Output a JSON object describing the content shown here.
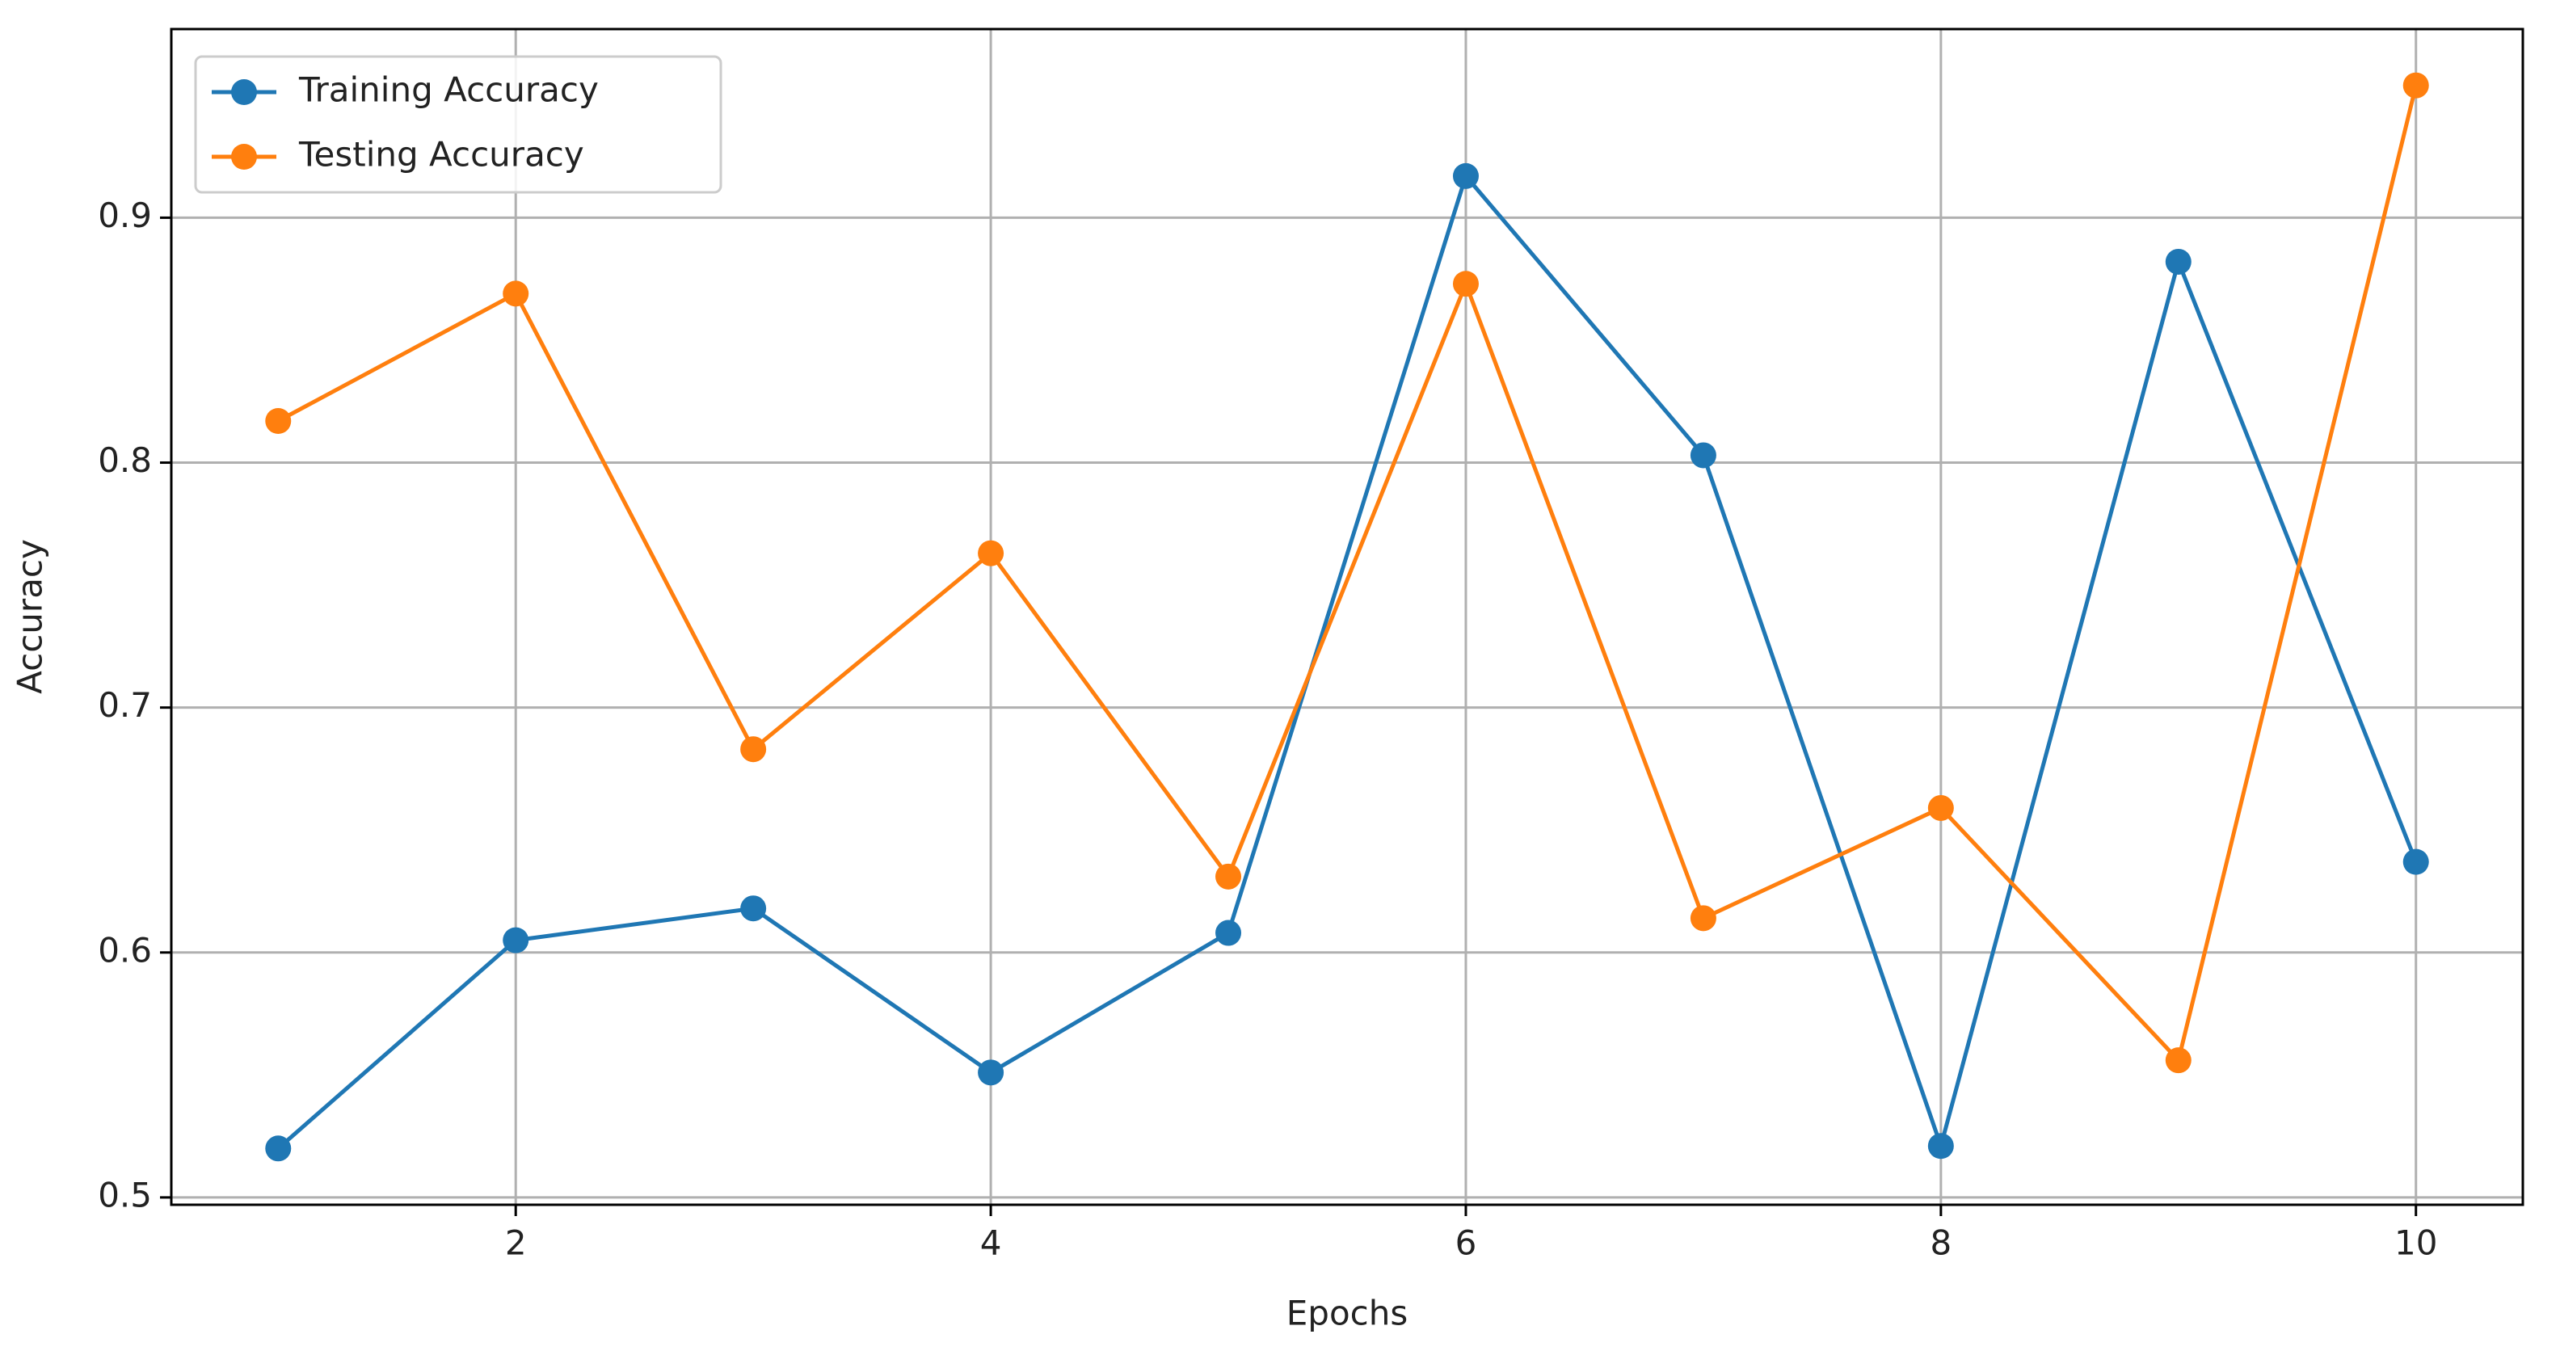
{
  "chart_data": {
    "type": "line",
    "x_label": "Epochs",
    "y_label": "Accuracy",
    "x": [
      1,
      2,
      3,
      4,
      5,
      6,
      7,
      8,
      9,
      10
    ],
    "series": [
      {
        "name": "Training Accuracy",
        "color": "#1f77b4",
        "values": [
          0.52,
          0.605,
          0.618,
          0.551,
          0.608,
          0.917,
          0.803,
          0.521,
          0.882,
          0.637
        ]
      },
      {
        "name": "Testing Accuracy",
        "color": "#ff7f0e",
        "values": [
          0.817,
          0.869,
          0.683,
          0.763,
          0.631,
          0.873,
          0.614,
          0.659,
          0.556,
          0.954
        ]
      }
    ],
    "xlim": [
      0.55,
      10.45
    ],
    "xticks": [
      2,
      4,
      6,
      8,
      10
    ],
    "ylim": [
      0.497,
      0.977
    ],
    "yticks": [
      0.5,
      0.6,
      0.7,
      0.8,
      0.9
    ],
    "grid": true,
    "legend": "upper left"
  }
}
